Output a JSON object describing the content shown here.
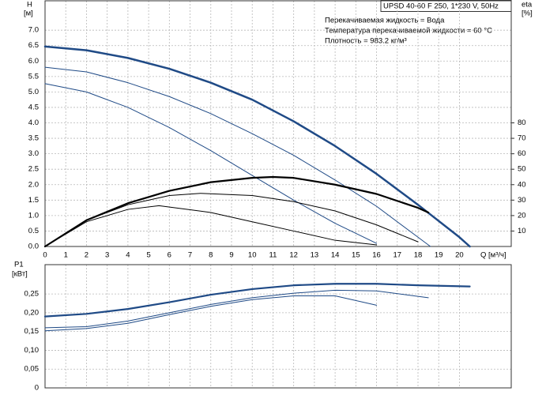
{
  "header": "UPSD 40-60 F 250, 1*230 V, 50Hz",
  "annotations": [
    "Перекачиваемая жидкость = Вода",
    "Температура перекачиваемой жидкости = 60 °C",
    "Плотность = 983.2 кг/м³"
  ],
  "chart_data": [
    {
      "type": "line",
      "ylabel": "H",
      "yunit": "[м]",
      "y2label": "eta",
      "y2unit": "[%]",
      "xlabel": "Q [м³/ч]",
      "xlim": [
        0,
        22.5
      ],
      "xticks": [
        0,
        1,
        2,
        3,
        4,
        5,
        6,
        7,
        8,
        9,
        10,
        11,
        12,
        13,
        14,
        15,
        16,
        17,
        18,
        19,
        20
      ],
      "ylim": [
        0,
        7.95
      ],
      "yticks": [
        {
          "value": 0,
          "label": "0.0"
        },
        0.5,
        {
          "value": 1,
          "label": "1.0"
        },
        1.5,
        {
          "value": 2,
          "label": "2.0"
        },
        2.5,
        {
          "value": 3,
          "label": "3.0"
        },
        3.5,
        {
          "value": 4,
          "label": "4.0"
        },
        4.5,
        {
          "value": 5,
          "label": "5.0"
        },
        5.5,
        {
          "value": 6,
          "label": "6.0"
        },
        6.5,
        {
          "value": 7,
          "label": "7.0"
        }
      ],
      "y2lim": [
        0,
        159
      ],
      "y2ticks": [
        10,
        20,
        30,
        40,
        50,
        60,
        70,
        80
      ],
      "grid": true,
      "series": [
        {
          "color": "#1f4a86",
          "line_width": 2.5,
          "x": [
            0,
            2,
            4,
            6,
            8,
            10,
            12,
            14,
            16,
            18,
            20,
            20.5
          ],
          "values": [
            6.47,
            6.35,
            6.1,
            5.75,
            5.3,
            4.75,
            4.05,
            3.25,
            2.35,
            1.35,
            0.3,
            0
          ]
        },
        {
          "color": "#1f4a86",
          "line_width": 1,
          "x": [
            0,
            2,
            4,
            6,
            8,
            10,
            12,
            14,
            16,
            18,
            18.6
          ],
          "values": [
            5.8,
            5.65,
            5.3,
            4.85,
            4.3,
            3.65,
            2.95,
            2.15,
            1.3,
            0.3,
            0
          ]
        },
        {
          "color": "#1f4a86",
          "line_width": 1,
          "x": [
            0,
            2,
            4,
            6,
            8,
            10,
            12,
            14,
            16
          ],
          "values": [
            5.27,
            5.0,
            4.5,
            3.85,
            3.1,
            2.3,
            1.5,
            0.75,
            0.1
          ]
        },
        {
          "color": "#000000",
          "line_width": 2.2,
          "axis": "y2",
          "x": [
            0,
            2,
            4,
            6,
            8,
            10,
            11,
            12,
            14,
            16,
            18,
            18.5
          ],
          "values": [
            0,
            17,
            28,
            36,
            41.6,
            44.4,
            45,
            44.4,
            40,
            34,
            25,
            22
          ]
        },
        {
          "color": "#000000",
          "line_width": 1,
          "axis": "y2",
          "x": [
            0,
            2,
            4,
            6,
            7.5,
            10,
            12,
            14,
            16,
            18
          ],
          "values": [
            0,
            17,
            27,
            33,
            34.4,
            33,
            29,
            23,
            14,
            3
          ]
        },
        {
          "color": "#000000",
          "line_width": 1,
          "axis": "y2",
          "x": [
            0,
            2,
            4,
            5.5,
            8,
            10,
            12,
            14,
            16
          ],
          "values": [
            0,
            16,
            24,
            26.4,
            22,
            16,
            10,
            4,
            1
          ]
        }
      ]
    },
    {
      "type": "line",
      "ylabel": "P1",
      "yunit": "[кВт]",
      "xlim": [
        0,
        22.5
      ],
      "ylim": [
        0,
        0.328
      ],
      "yticks": [
        0,
        {
          "value": 0.05,
          "label": "0,05"
        },
        {
          "value": 0.1,
          "label": "0,10"
        },
        {
          "value": 0.15,
          "label": "0,15"
        },
        {
          "value": 0.2,
          "label": "0,20"
        },
        {
          "value": 0.25,
          "label": "0,25"
        }
      ],
      "grid": true,
      "series": [
        {
          "color": "#1f4a86",
          "line_width": 2.2,
          "x": [
            0,
            2,
            4,
            6,
            8,
            10,
            12,
            14,
            16,
            18,
            20.5
          ],
          "values": [
            0.19,
            0.197,
            0.21,
            0.228,
            0.248,
            0.263,
            0.273,
            0.277,
            0.277,
            0.273,
            0.27
          ]
        },
        {
          "color": "#1f4a86",
          "line_width": 1,
          "x": [
            0,
            2,
            4,
            6,
            8,
            10,
            12,
            14,
            16,
            18.5
          ],
          "values": [
            0.16,
            0.163,
            0.178,
            0.2,
            0.222,
            0.24,
            0.252,
            0.26,
            0.258,
            0.24
          ]
        },
        {
          "color": "#1f4a86",
          "line_width": 1,
          "x": [
            0,
            2,
            4,
            6,
            8,
            10,
            12,
            14,
            16
          ],
          "values": [
            0.152,
            0.158,
            0.172,
            0.195,
            0.217,
            0.235,
            0.245,
            0.245,
            0.22
          ]
        }
      ]
    }
  ]
}
